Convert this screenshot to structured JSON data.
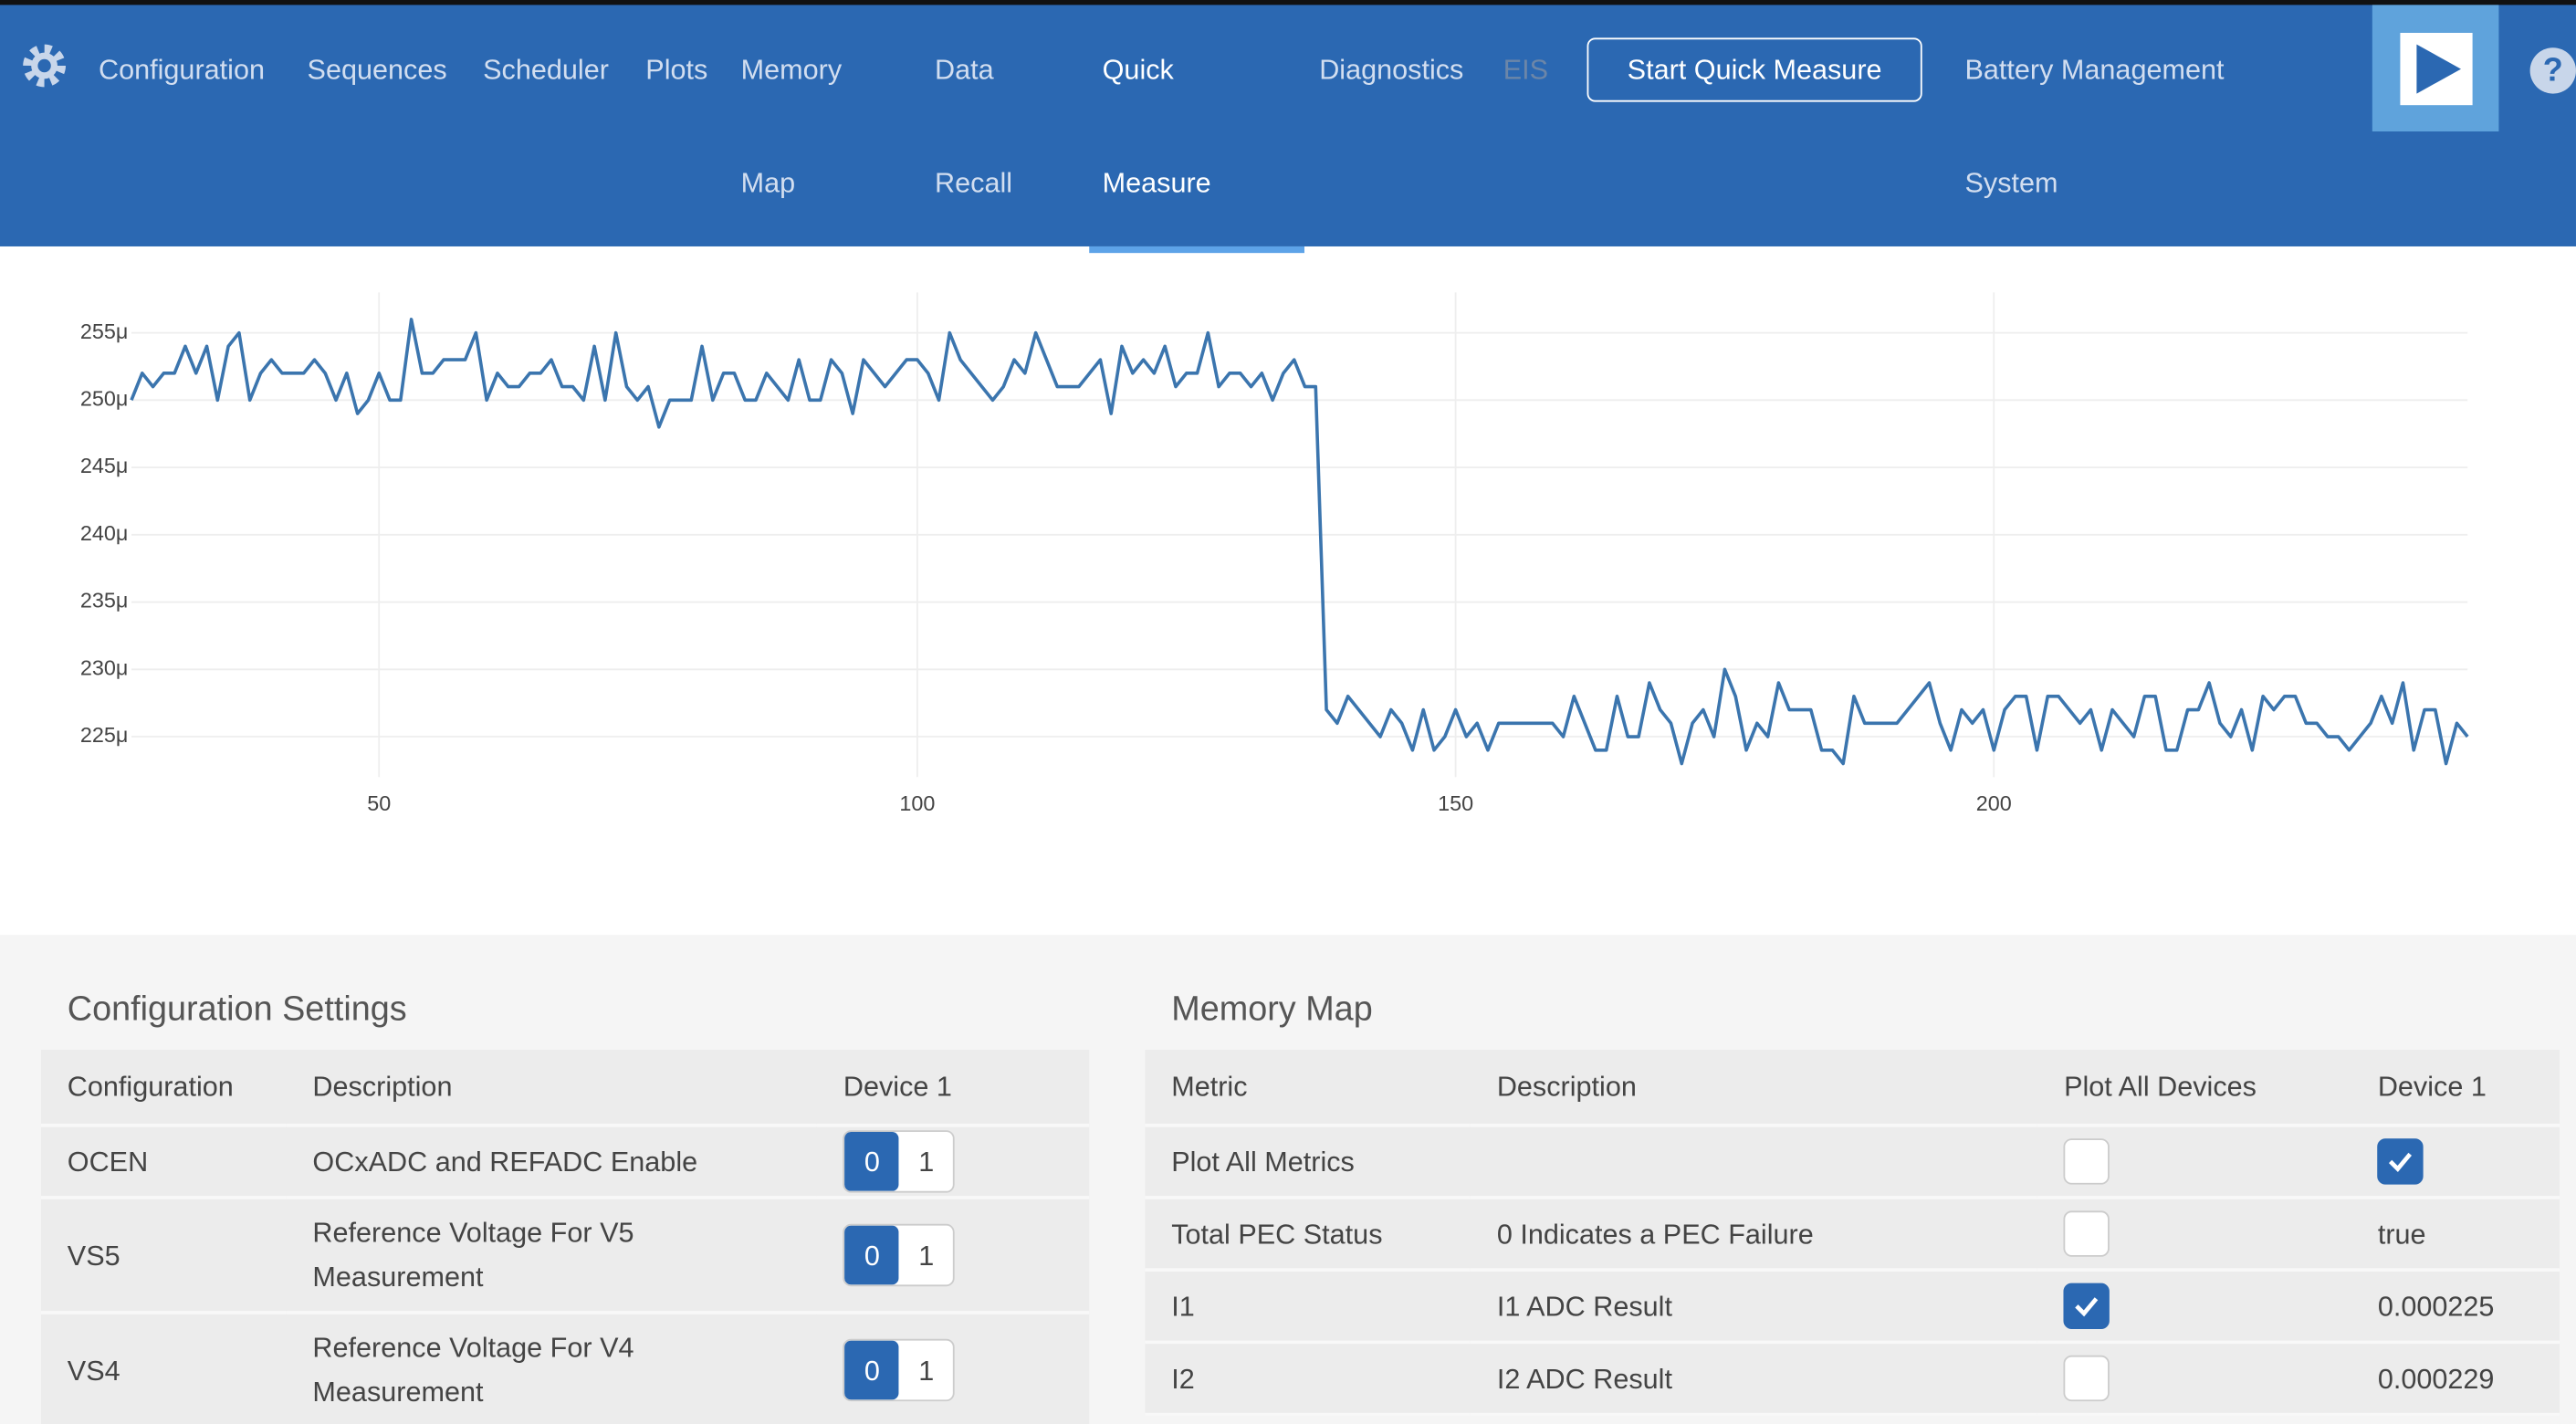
{
  "nav": {
    "items": [
      "Configuration",
      "Sequences",
      "Scheduler",
      "Plots",
      "Memory Map",
      "Data Recall",
      "Quick Measure",
      "Diagnostics",
      "EIS",
      "Battery Management System"
    ],
    "active": 6,
    "disabled": 8,
    "button": "Start Quick Measure"
  },
  "chart_data": {
    "type": "line",
    "color": "#3b75ae",
    "grid": true,
    "x": [
      27,
      28,
      29,
      30,
      31,
      32,
      33,
      34,
      35,
      36,
      37,
      38,
      39,
      40,
      41,
      42,
      43,
      44,
      45,
      46,
      47,
      48,
      49,
      50,
      51,
      52,
      53,
      54,
      55,
      56,
      57,
      58,
      59,
      60,
      61,
      62,
      63,
      64,
      65,
      66,
      67,
      68,
      69,
      70,
      71,
      72,
      73,
      74,
      75,
      76,
      77,
      78,
      79,
      80,
      81,
      82,
      83,
      84,
      85,
      86,
      87,
      88,
      89,
      90,
      91,
      92,
      93,
      94,
      95,
      96,
      97,
      98,
      99,
      100,
      101,
      102,
      103,
      104,
      105,
      106,
      107,
      108,
      109,
      110,
      111,
      112,
      113,
      114,
      115,
      116,
      117,
      118,
      119,
      120,
      121,
      122,
      123,
      124,
      125,
      126,
      127,
      128,
      129,
      130,
      131,
      132,
      133,
      134,
      135,
      136,
      137,
      138,
      139,
      140,
      141,
      142,
      143,
      144,
      145,
      146,
      147,
      148,
      149,
      150,
      151,
      152,
      153,
      154,
      155,
      156,
      157,
      158,
      159,
      160,
      161,
      162,
      163,
      164,
      165,
      166,
      167,
      168,
      169,
      170,
      171,
      172,
      173,
      174,
      175,
      176,
      177,
      178,
      179,
      180,
      181,
      182,
      183,
      184,
      185,
      186,
      187,
      188,
      189,
      190,
      191,
      192,
      193,
      194,
      195,
      196,
      197,
      198,
      199,
      200,
      201,
      202,
      203,
      204,
      205,
      206,
      207,
      208,
      209,
      210,
      211,
      212,
      213,
      214,
      215,
      216,
      217,
      218,
      219,
      220,
      221,
      222,
      223,
      224,
      225,
      226,
      227,
      228,
      229,
      230,
      231,
      232,
      233,
      234,
      235,
      236,
      237,
      238,
      239,
      240,
      241,
      242,
      243,
      244
    ],
    "series": [
      {
        "values": [
          0.00025,
          0.000252,
          0.000251,
          0.000252,
          0.000252,
          0.000254,
          0.000252,
          0.000254,
          0.00025,
          0.000254,
          0.000255,
          0.00025,
          0.000252,
          0.000253,
          0.000252,
          0.000252,
          0.000252,
          0.000253,
          0.000252,
          0.00025,
          0.000252,
          0.000249,
          0.00025,
          0.000252,
          0.00025,
          0.00025,
          0.000256,
          0.000252,
          0.000252,
          0.000253,
          0.000253,
          0.000253,
          0.000255,
          0.00025,
          0.000252,
          0.000251,
          0.000251,
          0.000252,
          0.000252,
          0.000253,
          0.000251,
          0.000251,
          0.00025,
          0.000254,
          0.00025,
          0.000255,
          0.000251,
          0.00025,
          0.000251,
          0.000248,
          0.00025,
          0.00025,
          0.00025,
          0.000254,
          0.00025,
          0.000252,
          0.000252,
          0.00025,
          0.00025,
          0.000252,
          0.000251,
          0.00025,
          0.000253,
          0.00025,
          0.00025,
          0.000253,
          0.000252,
          0.000249,
          0.000253,
          0.000252,
          0.000251,
          0.000252,
          0.000253,
          0.000253,
          0.000252,
          0.00025,
          0.000255,
          0.000253,
          0.000252,
          0.000251,
          0.00025,
          0.000251,
          0.000253,
          0.000252,
          0.000255,
          0.000253,
          0.000251,
          0.000251,
          0.000251,
          0.000252,
          0.000253,
          0.000249,
          0.000254,
          0.000252,
          0.000253,
          0.000252,
          0.000254,
          0.000251,
          0.000252,
          0.000252,
          0.000255,
          0.000251,
          0.000252,
          0.000252,
          0.000251,
          0.000252,
          0.00025,
          0.000252,
          0.000253,
          0.000251,
          0.000251,
          0.000227,
          0.000226,
          0.000228,
          0.000227,
          0.000226,
          0.000225,
          0.000227,
          0.000226,
          0.000224,
          0.000227,
          0.000224,
          0.000225,
          0.000227,
          0.000225,
          0.000226,
          0.000224,
          0.000226,
          0.000226,
          0.000226,
          0.000226,
          0.000226,
          0.000226,
          0.000225,
          0.000228,
          0.000226,
          0.000224,
          0.000224,
          0.000228,
          0.000225,
          0.000225,
          0.000229,
          0.000227,
          0.000226,
          0.000223,
          0.000226,
          0.000227,
          0.000225,
          0.00023,
          0.000228,
          0.000224,
          0.000226,
          0.000225,
          0.000229,
          0.000227,
          0.000227,
          0.000227,
          0.000224,
          0.000224,
          0.000223,
          0.000228,
          0.000226,
          0.000226,
          0.000226,
          0.000226,
          0.000227,
          0.000228,
          0.000229,
          0.000226,
          0.000224,
          0.000227,
          0.000226,
          0.000227,
          0.000224,
          0.000227,
          0.000228,
          0.000228,
          0.000224,
          0.000228,
          0.000228,
          0.000227,
          0.000226,
          0.000227,
          0.000224,
          0.000227,
          0.000226,
          0.000225,
          0.000228,
          0.000228,
          0.000224,
          0.000224,
          0.000227,
          0.000227,
          0.000229,
          0.000226,
          0.000225,
          0.000227,
          0.000224,
          0.000228,
          0.000227,
          0.000228,
          0.000228,
          0.000226,
          0.000226,
          0.000225,
          0.000225,
          0.000224,
          0.000225,
          0.000226,
          0.000228,
          0.000226,
          0.000229,
          0.000224,
          0.000227,
          0.000227,
          0.000223,
          0.000226,
          0.000225
        ]
      }
    ],
    "xlim": [
      27,
      244
    ],
    "xticks": [
      50,
      100,
      150,
      200
    ],
    "ylim": [
      0.000222,
      0.000258
    ],
    "yticks": [
      {
        "value": 0.000225,
        "label": "225μ"
      },
      {
        "value": 0.00023,
        "label": "230μ"
      },
      {
        "value": 0.000235,
        "label": "235μ"
      },
      {
        "value": 0.00024,
        "label": "240μ"
      },
      {
        "value": 0.000245,
        "label": "245μ"
      },
      {
        "value": 0.00025,
        "label": "250μ"
      },
      {
        "value": 0.000255,
        "label": "255μ"
      }
    ]
  },
  "config": {
    "title": "Configuration Settings",
    "columns": [
      "Configuration",
      "Description",
      "Device 1"
    ],
    "rows": [
      {
        "name": "OCEN",
        "description": "OCxADC and REFADC Enable",
        "options": [
          0,
          1
        ],
        "selected": 0
      },
      {
        "name": "VS5",
        "description": "Reference Voltage For V5 Measurement",
        "options": [
          0,
          1
        ],
        "selected": 0
      },
      {
        "name": "VS4",
        "description": "Reference Voltage For V4 Measurement",
        "options": [
          0,
          1
        ],
        "selected": 0
      }
    ]
  },
  "memory": {
    "title": "Memory Map",
    "columns": [
      "Metric",
      "Description",
      "Plot All Devices",
      "Device 1"
    ],
    "rows": [
      {
        "metric": "Plot All Metrics",
        "plot": false,
        "device": true
      },
      {
        "metric": "Total PEC Status",
        "description": "0 Indicates a PEC Failure",
        "plot": false,
        "device": "true"
      },
      {
        "metric": "I1",
        "description": "I1 ADC Result",
        "plot": true,
        "device": 0.000225
      },
      {
        "metric": "I2",
        "description": "I2 ADC Result",
        "plot": false,
        "device": 0.000229
      }
    ]
  }
}
